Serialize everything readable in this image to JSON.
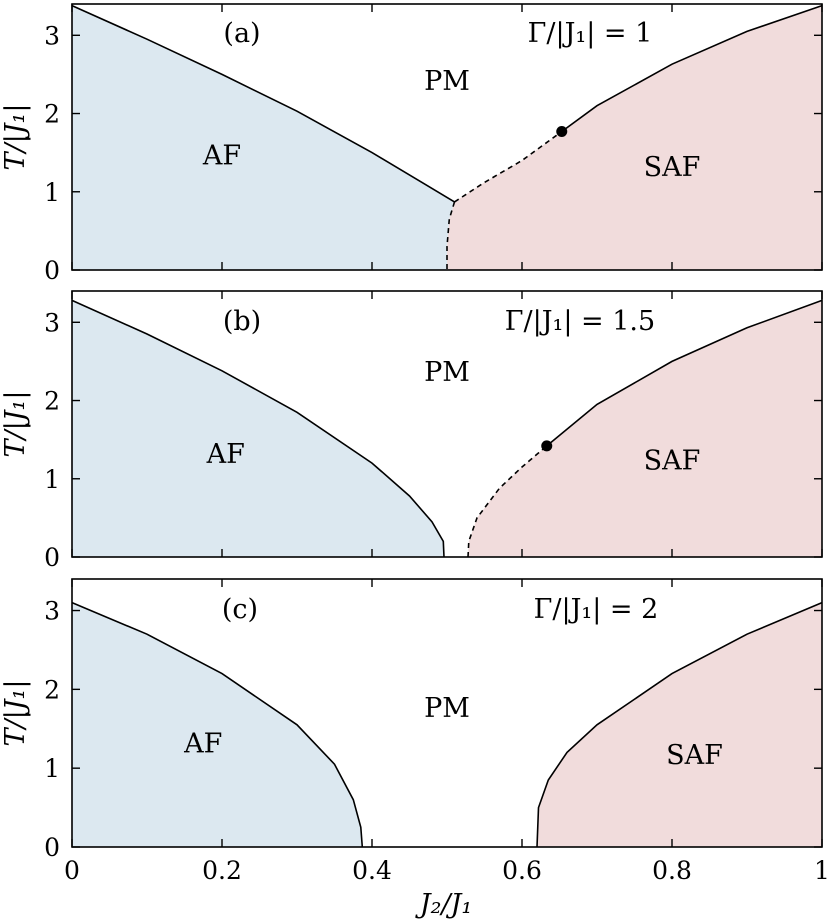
{
  "chart_data": [
    {
      "type": "area",
      "panel": "(a)",
      "annotation": "Γ/|J₁| = 1",
      "xlabel": "J₂/J₁",
      "ylabel": "T/|J₁|",
      "xlim": [
        0,
        1
      ],
      "ylim": [
        0,
        3.4
      ],
      "xticks": [
        "0",
        "0.2",
        "0.4",
        "0.6",
        "0.8",
        "1"
      ],
      "yticks": [
        "0",
        "1",
        "2",
        "3"
      ],
      "regions": [
        {
          "label": "AF",
          "color": "#dce8f0",
          "label_at": [
            0.2,
            1.35
          ]
        },
        {
          "label": "PM",
          "label_at": [
            0.5,
            2.3
          ]
        },
        {
          "label": "SAF",
          "color": "#f1dcdc",
          "label_at": [
            0.8,
            1.2
          ]
        }
      ],
      "boundaries": [
        {
          "style": "solid",
          "x": [
            0,
            0.1,
            0.2,
            0.3,
            0.4,
            0.47,
            0.51
          ],
          "y": [
            3.38,
            2.95,
            2.5,
            2.03,
            1.5,
            1.1,
            0.87
          ]
        },
        {
          "style": "dashed",
          "x": [
            0.51,
            0.503,
            0.5,
            0.5
          ],
          "y": [
            0.87,
            0.65,
            0.3,
            0.0
          ]
        },
        {
          "style": "dashed",
          "x": [
            0.51,
            0.55,
            0.6,
            0.653
          ],
          "y": [
            0.87,
            1.12,
            1.4,
            1.77
          ]
        },
        {
          "style": "solid",
          "x": [
            0.653,
            0.7,
            0.8,
            0.9,
            1.0
          ],
          "y": [
            1.77,
            2.1,
            2.63,
            3.05,
            3.38
          ]
        }
      ],
      "points": [
        {
          "x": 0.653,
          "y": 1.77
        }
      ]
    },
    {
      "type": "area",
      "panel": "(b)",
      "annotation": "Γ/|J₁| = 1.5",
      "xlabel": "J₂/J₁",
      "ylabel": "T/|J₁|",
      "xlim": [
        0,
        1
      ],
      "ylim": [
        0,
        3.4
      ],
      "xticks": [
        "0",
        "0.2",
        "0.4",
        "0.6",
        "0.8",
        "1"
      ],
      "yticks": [
        "0",
        "1",
        "2",
        "3"
      ],
      "regions": [
        {
          "label": "AF",
          "color": "#dce8f0",
          "label_at": [
            0.205,
            1.2
          ]
        },
        {
          "label": "PM",
          "label_at": [
            0.5,
            2.25
          ]
        },
        {
          "label": "SAF",
          "color": "#f1dcdc",
          "label_at": [
            0.8,
            1.12
          ]
        }
      ],
      "boundaries": [
        {
          "style": "solid",
          "x": [
            0,
            0.1,
            0.2,
            0.3,
            0.4,
            0.45,
            0.48,
            0.495,
            0.496
          ],
          "y": [
            3.28,
            2.85,
            2.38,
            1.85,
            1.2,
            0.78,
            0.45,
            0.2,
            0.0
          ]
        },
        {
          "style": "dashed",
          "x": [
            0.528,
            0.529,
            0.54,
            0.57,
            0.6,
            0.633
          ],
          "y": [
            0.0,
            0.2,
            0.5,
            0.88,
            1.15,
            1.42
          ]
        },
        {
          "style": "solid",
          "x": [
            0.633,
            0.7,
            0.8,
            0.9,
            1.0
          ],
          "y": [
            1.42,
            1.95,
            2.5,
            2.93,
            3.28
          ]
        }
      ],
      "points": [
        {
          "x": 0.633,
          "y": 1.42
        }
      ]
    },
    {
      "type": "area",
      "panel": "(c)",
      "annotation": "Γ/|J₁| = 2",
      "xlabel": "J₂/J₁",
      "ylabel": "T/|J₁|",
      "xlim": [
        0,
        1
      ],
      "ylim": [
        0,
        3.4
      ],
      "xticks": [
        "0",
        "0.2",
        "0.4",
        "0.6",
        "0.8",
        "1"
      ],
      "yticks": [
        "0",
        "1",
        "2",
        "3"
      ],
      "regions": [
        {
          "label": "AF",
          "color": "#dce8f0",
          "label_at": [
            0.175,
            1.2
          ]
        },
        {
          "label": "PM",
          "label_at": [
            0.5,
            1.65
          ]
        },
        {
          "label": "SAF",
          "color": "#f1dcdc",
          "label_at": [
            0.83,
            1.05
          ]
        }
      ],
      "boundaries": [
        {
          "style": "solid",
          "x": [
            0,
            0.1,
            0.2,
            0.3,
            0.35,
            0.375,
            0.385,
            0.387
          ],
          "y": [
            3.1,
            2.7,
            2.2,
            1.55,
            1.05,
            0.6,
            0.25,
            0.0
          ]
        },
        {
          "style": "solid",
          "x": [
            0.62,
            0.622,
            0.635,
            0.66,
            0.7,
            0.8,
            0.9,
            1.0
          ],
          "y": [
            0.0,
            0.5,
            0.85,
            1.2,
            1.55,
            2.2,
            2.7,
            3.1
          ]
        }
      ],
      "points": []
    }
  ]
}
